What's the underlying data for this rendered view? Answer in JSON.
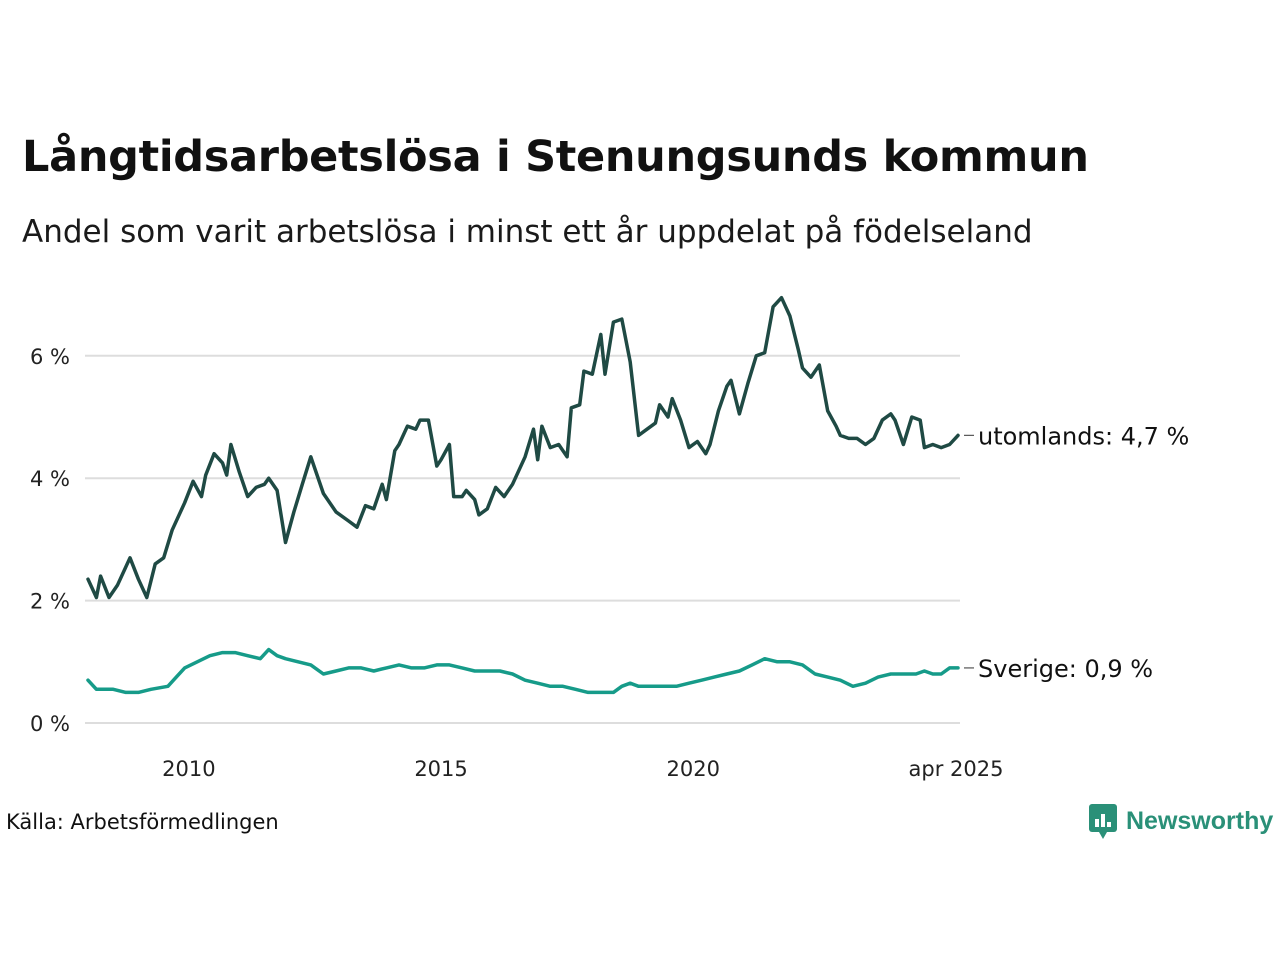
{
  "title": "Långtidsarbetslösa i Stenungsunds kommun",
  "subtitle": "Andel som varit arbetslösa i minst ett år uppdelat på födelseland",
  "source": "Källa: Arbetsförmedlingen",
  "brand": "Newsworthy",
  "colors": {
    "utomlands": "#1f4a44",
    "sverige": "#169b89",
    "grid": "#dddddd",
    "brand": "#2a9078"
  },
  "chart_data": {
    "type": "line",
    "x_start": "2008-01",
    "x_end": "2025-04",
    "x_tick_labels": [
      "2010",
      "2015",
      "2020",
      "apr 2025"
    ],
    "y_tick_labels": [
      "0 %",
      "2 %",
      "4 %",
      "6 %"
    ],
    "y_ticks": [
      0,
      2,
      4,
      6
    ],
    "ylim": [
      0,
      7
    ],
    "grid": true,
    "series": [
      {
        "key": "utomlands",
        "end_label": "utomlands: 4,7 %",
        "anchors": [
          [
            "2008-01",
            2.35
          ],
          [
            "2008-03",
            2.05
          ],
          [
            "2008-04",
            2.4
          ],
          [
            "2008-06",
            2.05
          ],
          [
            "2008-08",
            2.25
          ],
          [
            "2008-11",
            2.7
          ],
          [
            "2009-01",
            2.35
          ],
          [
            "2009-03",
            2.05
          ],
          [
            "2009-05",
            2.6
          ],
          [
            "2009-07",
            2.7
          ],
          [
            "2009-09",
            3.15
          ],
          [
            "2009-12",
            3.6
          ],
          [
            "2010-02",
            3.95
          ],
          [
            "2010-04",
            3.7
          ],
          [
            "2010-05",
            4.05
          ],
          [
            "2010-07",
            4.4
          ],
          [
            "2010-09",
            4.25
          ],
          [
            "2010-10",
            4.05
          ],
          [
            "2010-11",
            4.55
          ],
          [
            "2011-01",
            4.1
          ],
          [
            "2011-03",
            3.7
          ],
          [
            "2011-05",
            3.85
          ],
          [
            "2011-07",
            3.9
          ],
          [
            "2011-08",
            4.0
          ],
          [
            "2011-10",
            3.8
          ],
          [
            "2011-12",
            2.95
          ],
          [
            "2012-02",
            3.45
          ],
          [
            "2012-04",
            3.9
          ],
          [
            "2012-06",
            4.35
          ],
          [
            "2012-09",
            3.75
          ],
          [
            "2012-12",
            3.45
          ],
          [
            "2013-03",
            3.3
          ],
          [
            "2013-05",
            3.2
          ],
          [
            "2013-07",
            3.55
          ],
          [
            "2013-09",
            3.5
          ],
          [
            "2013-11",
            3.9
          ],
          [
            "2013-12",
            3.65
          ],
          [
            "2014-02",
            4.45
          ],
          [
            "2014-03",
            4.55
          ],
          [
            "2014-05",
            4.85
          ],
          [
            "2014-07",
            4.8
          ],
          [
            "2014-08",
            4.95
          ],
          [
            "2014-10",
            4.95
          ],
          [
            "2014-12",
            4.2
          ],
          [
            "2015-01",
            4.3
          ],
          [
            "2015-03",
            4.55
          ],
          [
            "2015-04",
            3.7
          ],
          [
            "2015-06",
            3.7
          ],
          [
            "2015-07",
            3.8
          ],
          [
            "2015-09",
            3.65
          ],
          [
            "2015-10",
            3.4
          ],
          [
            "2015-12",
            3.5
          ],
          [
            "2016-02",
            3.85
          ],
          [
            "2016-04",
            3.7
          ],
          [
            "2016-06",
            3.9
          ],
          [
            "2016-09",
            4.35
          ],
          [
            "2016-11",
            4.8
          ],
          [
            "2016-12",
            4.3
          ],
          [
            "2017-01",
            4.85
          ],
          [
            "2017-03",
            4.5
          ],
          [
            "2017-05",
            4.55
          ],
          [
            "2017-07",
            4.35
          ],
          [
            "2017-08",
            5.15
          ],
          [
            "2017-10",
            5.2
          ],
          [
            "2017-11",
            5.75
          ],
          [
            "2018-01",
            5.7
          ],
          [
            "2018-03",
            6.35
          ],
          [
            "2018-04",
            5.7
          ],
          [
            "2018-06",
            6.55
          ],
          [
            "2018-08",
            6.6
          ],
          [
            "2018-10",
            5.9
          ],
          [
            "2018-12",
            4.7
          ],
          [
            "2019-02",
            4.8
          ],
          [
            "2019-04",
            4.9
          ],
          [
            "2019-05",
            5.2
          ],
          [
            "2019-07",
            5.0
          ],
          [
            "2019-08",
            5.3
          ],
          [
            "2019-10",
            4.95
          ],
          [
            "2019-12",
            4.5
          ],
          [
            "2020-02",
            4.6
          ],
          [
            "2020-04",
            4.4
          ],
          [
            "2020-05",
            4.55
          ],
          [
            "2020-07",
            5.1
          ],
          [
            "2020-09",
            5.5
          ],
          [
            "2020-10",
            5.6
          ],
          [
            "2020-12",
            5.05
          ],
          [
            "2021-02",
            5.55
          ],
          [
            "2021-04",
            6.0
          ],
          [
            "2021-06",
            6.05
          ],
          [
            "2021-08",
            6.8
          ],
          [
            "2021-10",
            6.95
          ],
          [
            "2021-12",
            6.65
          ],
          [
            "2022-02",
            6.1
          ],
          [
            "2022-03",
            5.8
          ],
          [
            "2022-05",
            5.65
          ],
          [
            "2022-07",
            5.85
          ],
          [
            "2022-09",
            5.1
          ],
          [
            "2022-11",
            4.85
          ],
          [
            "2022-12",
            4.7
          ],
          [
            "2023-02",
            4.65
          ],
          [
            "2023-04",
            4.65
          ],
          [
            "2023-06",
            4.55
          ],
          [
            "2023-08",
            4.65
          ],
          [
            "2023-10",
            4.95
          ],
          [
            "2023-12",
            5.05
          ],
          [
            "2024-01",
            4.95
          ],
          [
            "2024-03",
            4.55
          ],
          [
            "2024-05",
            5.0
          ],
          [
            "2024-07",
            4.95
          ],
          [
            "2024-08",
            4.5
          ],
          [
            "2024-10",
            4.55
          ],
          [
            "2024-12",
            4.5
          ],
          [
            "2025-02",
            4.55
          ],
          [
            "2025-04",
            4.7
          ]
        ]
      },
      {
        "key": "sverige",
        "end_label": "Sverige: 0,9 %",
        "anchors": [
          [
            "2008-01",
            0.7
          ],
          [
            "2008-03",
            0.55
          ],
          [
            "2008-05",
            0.55
          ],
          [
            "2008-07",
            0.55
          ],
          [
            "2008-10",
            0.5
          ],
          [
            "2009-01",
            0.5
          ],
          [
            "2009-04",
            0.55
          ],
          [
            "2009-08",
            0.6
          ],
          [
            "2009-10",
            0.75
          ],
          [
            "2009-12",
            0.9
          ],
          [
            "2010-03",
            1.0
          ],
          [
            "2010-06",
            1.1
          ],
          [
            "2010-09",
            1.15
          ],
          [
            "2010-12",
            1.15
          ],
          [
            "2011-03",
            1.1
          ],
          [
            "2011-06",
            1.05
          ],
          [
            "2011-08",
            1.2
          ],
          [
            "2011-10",
            1.1
          ],
          [
            "2011-12",
            1.05
          ],
          [
            "2012-03",
            1.0
          ],
          [
            "2012-06",
            0.95
          ],
          [
            "2012-09",
            0.8
          ],
          [
            "2012-12",
            0.85
          ],
          [
            "2013-03",
            0.9
          ],
          [
            "2013-06",
            0.9
          ],
          [
            "2013-09",
            0.85
          ],
          [
            "2013-12",
            0.9
          ],
          [
            "2014-03",
            0.95
          ],
          [
            "2014-06",
            0.9
          ],
          [
            "2014-09",
            0.9
          ],
          [
            "2014-12",
            0.95
          ],
          [
            "2015-03",
            0.95
          ],
          [
            "2015-06",
            0.9
          ],
          [
            "2015-09",
            0.85
          ],
          [
            "2015-12",
            0.85
          ],
          [
            "2016-03",
            0.85
          ],
          [
            "2016-06",
            0.8
          ],
          [
            "2016-09",
            0.7
          ],
          [
            "2016-12",
            0.65
          ],
          [
            "2017-03",
            0.6
          ],
          [
            "2017-06",
            0.6
          ],
          [
            "2017-09",
            0.55
          ],
          [
            "2017-12",
            0.5
          ],
          [
            "2018-03",
            0.5
          ],
          [
            "2018-06",
            0.5
          ],
          [
            "2018-08",
            0.6
          ],
          [
            "2018-10",
            0.65
          ],
          [
            "2018-12",
            0.6
          ],
          [
            "2019-03",
            0.6
          ],
          [
            "2019-06",
            0.6
          ],
          [
            "2019-09",
            0.6
          ],
          [
            "2019-12",
            0.65
          ],
          [
            "2020-03",
            0.7
          ],
          [
            "2020-06",
            0.75
          ],
          [
            "2020-09",
            0.8
          ],
          [
            "2020-12",
            0.85
          ],
          [
            "2021-03",
            0.95
          ],
          [
            "2021-06",
            1.05
          ],
          [
            "2021-09",
            1.0
          ],
          [
            "2021-12",
            1.0
          ],
          [
            "2022-03",
            0.95
          ],
          [
            "2022-06",
            0.8
          ],
          [
            "2022-09",
            0.75
          ],
          [
            "2022-12",
            0.7
          ],
          [
            "2023-03",
            0.6
          ],
          [
            "2023-06",
            0.65
          ],
          [
            "2023-09",
            0.75
          ],
          [
            "2023-12",
            0.8
          ],
          [
            "2024-03",
            0.8
          ],
          [
            "2024-06",
            0.8
          ],
          [
            "2024-08",
            0.85
          ],
          [
            "2024-10",
            0.8
          ],
          [
            "2024-12",
            0.8
          ],
          [
            "2025-02",
            0.9
          ],
          [
            "2025-04",
            0.9
          ]
        ]
      }
    ]
  }
}
